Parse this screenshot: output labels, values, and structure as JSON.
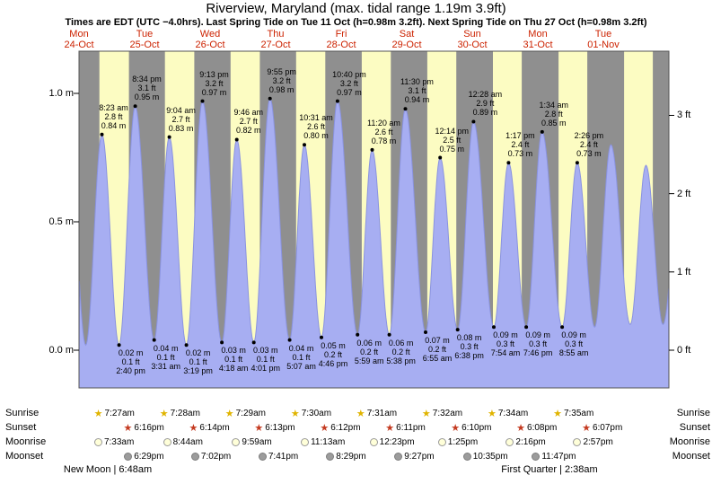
{
  "title": "Riverview, Maryland (max. tidal range 1.19m 3.9ft)",
  "subtitle": "Times are EDT (UTC −4.0hrs). Last Spring Tide on Tue 11 Oct (h=0.98m 3.2ft). Next Spring Tide on Thu 27 Oct (h=0.98m 3.2ft)",
  "colors": {
    "day_band": "#fcfcc2",
    "night": "#8f8f8f",
    "tide_fill": "#a7aef2",
    "tide_stroke": "#8a93e0",
    "day_label": "#cc2200",
    "sunrise_star": "#e0b400",
    "sunset_star": "#c43a20",
    "moonrise_fill": "#ffffd9",
    "moonrise_border": "#999999",
    "moonset_fill": "#9c9c9c",
    "moonset_border": "#7d7d7d"
  },
  "chart_data": {
    "type": "area",
    "description": "Tide height curve over 9 days with labeled high and low tides",
    "days": [
      {
        "name": "Mon",
        "date": "24-Oct"
      },
      {
        "name": "Tue",
        "date": "25-Oct"
      },
      {
        "name": "Wed",
        "date": "26-Oct"
      },
      {
        "name": "Thu",
        "date": "27-Oct"
      },
      {
        "name": "Fri",
        "date": "28-Oct"
      },
      {
        "name": "Sat",
        "date": "29-Oct"
      },
      {
        "name": "Sun",
        "date": "30-Oct"
      },
      {
        "name": "Mon",
        "date": "31-Oct"
      },
      {
        "name": "Tue",
        "date": "01-Nov"
      }
    ],
    "y_left": {
      "unit": "m",
      "ticks": [
        {
          "value": 0,
          "label": "0.0 m"
        },
        {
          "value": 0.5,
          "label": "0.5 m"
        },
        {
          "value": 1,
          "label": "1.0 m"
        }
      ]
    },
    "y_right": {
      "unit": "ft",
      "ticks": [
        {
          "value": 0,
          "label": "0 ft"
        },
        {
          "value": 1,
          "label": "1 ft"
        },
        {
          "value": 2,
          "label": "2 ft"
        },
        {
          "value": 3,
          "label": "3 ft"
        }
      ]
    },
    "ylim_m": [
      -0.16,
      1.17
    ],
    "tides": [
      {
        "day": 0,
        "type": "high",
        "time": "8:23 am",
        "height_m": 0.84,
        "height_ft": 2.8
      },
      {
        "day": 0,
        "type": "low",
        "time": "2:40 pm",
        "height_m": 0.02,
        "height_ft": 0.1
      },
      {
        "day": 0,
        "type": "high",
        "time": "8:34 pm",
        "height_m": 0.95,
        "height_ft": 3.1
      },
      {
        "day": 1,
        "type": "low",
        "time": "3:31 am",
        "height_m": 0.04,
        "height_ft": 0.1
      },
      {
        "day": 1,
        "type": "high",
        "time": "9:04 am",
        "height_m": 0.83,
        "height_ft": 2.7
      },
      {
        "day": 1,
        "type": "low",
        "time": "3:19 pm",
        "height_m": 0.02,
        "height_ft": 0.1
      },
      {
        "day": 1,
        "type": "high",
        "time": "9:13 pm",
        "height_m": 0.97,
        "height_ft": 3.2
      },
      {
        "day": 2,
        "type": "low",
        "time": "4:18 am",
        "height_m": 0.03,
        "height_ft": 0.1
      },
      {
        "day": 2,
        "type": "high",
        "time": "9:46 am",
        "height_m": 0.82,
        "height_ft": 2.7
      },
      {
        "day": 2,
        "type": "low",
        "time": "4:01 pm",
        "height_m": 0.03,
        "height_ft": 0.1
      },
      {
        "day": 2,
        "type": "high",
        "time": "9:55 pm",
        "height_m": 0.98,
        "height_ft": 3.2
      },
      {
        "day": 3,
        "type": "low",
        "time": "5:07 am",
        "height_m": 0.04,
        "height_ft": 0.1
      },
      {
        "day": 3,
        "type": "high",
        "time": "10:31 am",
        "height_m": 0.8,
        "height_ft": 2.6
      },
      {
        "day": 3,
        "type": "low",
        "time": "4:46 pm",
        "height_m": 0.05,
        "height_ft": 0.2
      },
      {
        "day": 3,
        "type": "high",
        "time": "10:40 pm",
        "height_m": 0.97,
        "height_ft": 3.2
      },
      {
        "day": 4,
        "type": "low",
        "time": "5:59 am",
        "height_m": 0.06,
        "height_ft": 0.2
      },
      {
        "day": 4,
        "type": "high",
        "time": "11:20 am",
        "height_m": 0.78,
        "height_ft": 2.6
      },
      {
        "day": 4,
        "type": "low",
        "time": "5:38 pm",
        "height_m": 0.06,
        "height_ft": 0.2
      },
      {
        "day": 4,
        "type": "high",
        "time": "11:30 pm",
        "height_m": 0.94,
        "height_ft": 3.1
      },
      {
        "day": 5,
        "type": "low",
        "time": "6:55 am",
        "height_m": 0.07,
        "height_ft": 0.2
      },
      {
        "day": 5,
        "type": "high",
        "time": "12:14 pm",
        "height_m": 0.75,
        "height_ft": 2.5
      },
      {
        "day": 5,
        "type": "low",
        "time": "6:38 pm",
        "height_m": 0.08,
        "height_ft": 0.3
      },
      {
        "day": 6,
        "type": "high",
        "time": "12:28 am",
        "height_m": 0.89,
        "height_ft": 2.9
      },
      {
        "day": 6,
        "type": "low",
        "time": "7:54 am",
        "height_m": 0.09,
        "height_ft": 0.3
      },
      {
        "day": 6,
        "type": "high",
        "time": "1:17 pm",
        "height_m": 0.73,
        "height_ft": 2.4
      },
      {
        "day": 6,
        "type": "low",
        "time": "7:46 pm",
        "height_m": 0.09,
        "height_ft": 0.3
      },
      {
        "day": 7,
        "type": "high",
        "time": "1:34 am",
        "height_m": 0.85,
        "height_ft": 2.8
      },
      {
        "day": 7,
        "type": "low",
        "time": "8:55 am",
        "height_m": 0.09,
        "height_ft": 0.3
      },
      {
        "day": 7,
        "type": "high",
        "time": "2:26 pm",
        "height_m": 0.73,
        "height_ft": 2.4
      }
    ]
  },
  "astro": {
    "row_labels": [
      "Sunrise",
      "Sunset",
      "Moonrise",
      "Moonset"
    ],
    "sunrise": [
      "7:27am",
      "7:28am",
      "7:29am",
      "7:30am",
      "7:31am",
      "7:32am",
      "7:34am",
      "7:35am"
    ],
    "sunset": [
      "6:16pm",
      "6:14pm",
      "6:13pm",
      "6:12pm",
      "6:11pm",
      "6:10pm",
      "6:08pm",
      "6:07pm"
    ],
    "moonrise": [
      "7:33am",
      "8:44am",
      "9:59am",
      "11:13am",
      "12:23pm",
      "1:25pm",
      "2:16pm",
      "2:57pm"
    ],
    "moonset": [
      "6:29pm",
      "7:02pm",
      "7:41pm",
      "8:29pm",
      "9:27pm",
      "10:35pm",
      "11:47pm"
    ],
    "phases": [
      "New Moon | 6:48am",
      "First Quarter | 2:38am"
    ]
  }
}
